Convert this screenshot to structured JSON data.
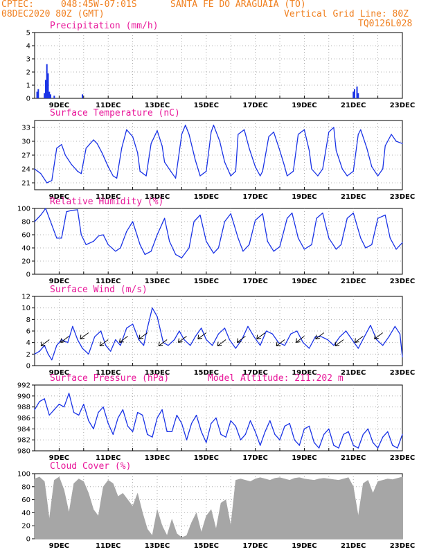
{
  "header": {
    "source": "CPTEC:",
    "coords": "048:45W-07:01S",
    "location": "SANTA FE DO ARAGUAIA (TO)",
    "run": "08DEC2020 80Z (GMT)",
    "grid_note": "Vertical Grid Line: 80Z",
    "code": "TQ0126L028"
  },
  "colors": {
    "series": "#1a33e6",
    "cloud": "#a6a6a6",
    "title": "#e8189a",
    "header": "#f08020",
    "grid": "#9a9a9a"
  },
  "chart_data": [
    {
      "type": "bar",
      "title": "Precipitation (mm/h)",
      "x_labels": [
        "9DEC",
        "11DEC",
        "13DEC",
        "15DEC",
        "17DEC",
        "19DEC",
        "21DEC",
        "23DEC"
      ],
      "xlim_days": [
        8,
        23
      ],
      "ylim": [
        0,
        5
      ],
      "yticks": [
        0,
        1,
        2,
        3,
        4,
        5
      ],
      "grid": true,
      "x": [
        8.1,
        8.15,
        8.4,
        8.45,
        8.5,
        8.55,
        8.6,
        8.65,
        8.8,
        9.95,
        21.0,
        21.05,
        21.15,
        21.2
      ],
      "values": [
        0.5,
        0.7,
        0.4,
        1.4,
        2.6,
        1.9,
        0.5,
        0.3,
        0.2,
        0.3,
        0.5,
        0.7,
        0.9,
        0.4
      ]
    },
    {
      "type": "line",
      "title": "Surface Temperature (nC)",
      "x_labels": [
        "9DEC",
        "11DEC",
        "13DEC",
        "15DEC",
        "17DEC",
        "19DEC",
        "21DEC",
        "23DEC"
      ],
      "xlim_days": [
        8,
        23
      ],
      "ylim": [
        19.5,
        34.5
      ],
      "yticks": [
        21,
        24,
        27,
        30,
        33
      ],
      "grid": true,
      "x": [
        8.0,
        8.25,
        8.5,
        8.7,
        8.9,
        9.1,
        9.25,
        9.5,
        9.75,
        9.9,
        10.1,
        10.4,
        10.55,
        10.75,
        11.0,
        11.2,
        11.35,
        11.55,
        11.75,
        12.0,
        12.2,
        12.3,
        12.55,
        12.75,
        13.0,
        13.2,
        13.3,
        13.55,
        13.75,
        14.0,
        14.15,
        14.3,
        14.55,
        14.75,
        15.0,
        15.2,
        15.3,
        15.55,
        15.75,
        16.0,
        16.2,
        16.3,
        16.55,
        16.75,
        17.0,
        17.2,
        17.3,
        17.55,
        17.75,
        18.0,
        18.2,
        18.3,
        18.55,
        18.75,
        19.0,
        19.2,
        19.3,
        19.55,
        19.75,
        20.0,
        20.2,
        20.3,
        20.55,
        20.75,
        21.0,
        21.2,
        21.3,
        21.55,
        21.75,
        22.0,
        22.2,
        22.3,
        22.55,
        22.75,
        23.0
      ],
      "values": [
        24.0,
        23.0,
        21.0,
        21.5,
        28.5,
        29.3,
        27.0,
        25.0,
        23.5,
        23.0,
        28.5,
        30.3,
        29.5,
        27.5,
        24.5,
        22.5,
        22.0,
        28.5,
        32.5,
        31.0,
        27.5,
        23.5,
        22.5,
        29.5,
        32.3,
        29.0,
        25.5,
        23.5,
        22.0,
        31.5,
        33.5,
        31.5,
        26.0,
        22.5,
        23.5,
        32.0,
        33.5,
        30.0,
        25.5,
        22.5,
        23.5,
        31.5,
        32.5,
        28.5,
        24.5,
        22.5,
        23.5,
        31.0,
        32.0,
        28.0,
        24.5,
        22.5,
        23.5,
        31.5,
        32.5,
        28.0,
        24.0,
        22.5,
        24.0,
        32.0,
        33.0,
        28.0,
        24.0,
        22.5,
        23.5,
        31.5,
        32.5,
        28.5,
        24.5,
        22.5,
        24.0,
        29.0,
        31.5,
        30.0,
        29.5
      ]
    },
    {
      "type": "line",
      "title": "Relative Humidity (%)",
      "x_labels": [
        "9DEC",
        "11DEC",
        "13DEC",
        "15DEC",
        "17DEC",
        "19DEC",
        "21DEC",
        "23DEC"
      ],
      "xlim_days": [
        8,
        23
      ],
      "ylim": [
        0,
        100
      ],
      "yticks": [
        0,
        20,
        40,
        60,
        80,
        100
      ],
      "grid": true,
      "x": [
        8.0,
        8.25,
        8.45,
        8.7,
        8.9,
        9.1,
        9.3,
        9.5,
        9.75,
        9.9,
        10.1,
        10.4,
        10.6,
        10.8,
        11.0,
        11.3,
        11.5,
        11.75,
        12.0,
        12.3,
        12.5,
        12.75,
        13.0,
        13.3,
        13.5,
        13.75,
        14.0,
        14.3,
        14.5,
        14.75,
        15.0,
        15.3,
        15.5,
        15.75,
        16.0,
        16.3,
        16.5,
        16.75,
        17.0,
        17.3,
        17.5,
        17.75,
        18.0,
        18.3,
        18.5,
        18.75,
        19.0,
        19.3,
        19.5,
        19.75,
        20.0,
        20.3,
        20.5,
        20.75,
        21.0,
        21.3,
        21.5,
        21.75,
        22.0,
        22.3,
        22.5,
        22.75,
        23.0
      ],
      "values": [
        80,
        90,
        100,
        75,
        55,
        55,
        95,
        97,
        98,
        60,
        45,
        50,
        58,
        60,
        45,
        35,
        40,
        65,
        80,
        45,
        30,
        35,
        60,
        85,
        50,
        30,
        25,
        40,
        80,
        90,
        50,
        32,
        40,
        80,
        92,
        55,
        35,
        45,
        82,
        92,
        50,
        35,
        42,
        85,
        93,
        55,
        38,
        45,
        85,
        93,
        55,
        38,
        45,
        85,
        93,
        55,
        40,
        45,
        85,
        90,
        55,
        38,
        48
      ]
    },
    {
      "type": "line",
      "title": "Surface Wind (m/s)",
      "x_labels": [
        "9DEC",
        "11DEC",
        "13DEC",
        "15DEC",
        "17DEC",
        "19DEC",
        "21DEC",
        "23DEC"
      ],
      "xlim_days": [
        8,
        23
      ],
      "ylim": [
        0,
        12
      ],
      "yticks": [
        0,
        2,
        4,
        6,
        8,
        10,
        12
      ],
      "grid": true,
      "x": [
        8.0,
        8.2,
        8.4,
        8.55,
        8.7,
        8.9,
        9.1,
        9.35,
        9.55,
        9.75,
        9.95,
        10.2,
        10.45,
        10.7,
        10.9,
        11.1,
        11.3,
        11.5,
        11.75,
        12.0,
        12.25,
        12.45,
        12.6,
        12.8,
        13.0,
        13.25,
        13.45,
        13.7,
        13.9,
        14.1,
        14.35,
        14.55,
        14.8,
        15.0,
        15.25,
        15.5,
        15.75,
        15.95,
        16.2,
        16.45,
        16.7,
        16.95,
        17.2,
        17.45,
        17.7,
        17.95,
        18.2,
        18.45,
        18.7,
        18.95,
        19.2,
        19.45,
        19.7,
        19.95,
        20.2,
        20.45,
        20.7,
        20.95,
        21.2,
        21.45,
        21.7,
        21.95,
        22.2,
        22.45,
        22.7,
        22.9,
        23.0
      ],
      "values": [
        2.0,
        2.5,
        3.5,
        2.0,
        1.0,
        3.5,
        4.5,
        4.0,
        6.8,
        4.5,
        3.0,
        2.0,
        5.0,
        6.0,
        3.5,
        2.5,
        4.5,
        3.5,
        6.5,
        7.2,
        4.5,
        3.5,
        6.5,
        10.0,
        8.5,
        4.0,
        3.5,
        4.5,
        6.0,
        4.5,
        3.5,
        5.0,
        6.5,
        4.5,
        3.5,
        5.5,
        6.5,
        4.5,
        3.0,
        4.5,
        6.8,
        5.0,
        3.5,
        6.0,
        5.5,
        4.0,
        3.5,
        5.5,
        6.0,
        4.0,
        3.0,
        5.0,
        5.0,
        4.5,
        3.5,
        5.0,
        6.0,
        4.5,
        3.0,
        5.0,
        7.0,
        4.5,
        3.5,
        5.0,
        6.8,
        5.5,
        1.5
      ]
    },
    {
      "type": "line",
      "title": "Surface Pressure (hPa)",
      "annotation": "Model Altitude: 211.202 m",
      "x_labels": [
        "9DEC",
        "11DEC",
        "13DEC",
        "15DEC",
        "17DEC",
        "19DEC",
        "21DEC",
        "23DEC"
      ],
      "xlim_days": [
        8,
        23
      ],
      "ylim": [
        980,
        992
      ],
      "yticks": [
        980,
        982,
        984,
        986,
        988,
        990,
        992
      ],
      "grid": true,
      "x": [
        8.0,
        8.2,
        8.4,
        8.6,
        8.8,
        9.0,
        9.2,
        9.4,
        9.6,
        9.8,
        10.0,
        10.2,
        10.4,
        10.6,
        10.8,
        11.0,
        11.2,
        11.4,
        11.6,
        11.8,
        12.0,
        12.2,
        12.4,
        12.6,
        12.8,
        13.0,
        13.2,
        13.4,
        13.6,
        13.8,
        14.0,
        14.2,
        14.4,
        14.6,
        14.8,
        15.0,
        15.2,
        15.4,
        15.6,
        15.8,
        16.0,
        16.2,
        16.4,
        16.6,
        16.8,
        17.0,
        17.2,
        17.4,
        17.6,
        17.8,
        18.0,
        18.2,
        18.4,
        18.6,
        18.8,
        19.0,
        19.2,
        19.4,
        19.6,
        19.8,
        20.0,
        20.2,
        20.4,
        20.6,
        20.8,
        21.0,
        21.2,
        21.4,
        21.6,
        21.8,
        22.0,
        22.2,
        22.4,
        22.6,
        22.8,
        23.0
      ],
      "values": [
        987.5,
        989.0,
        989.5,
        986.5,
        987.5,
        988.5,
        988.0,
        990.5,
        987.0,
        986.5,
        988.5,
        985.5,
        984.0,
        987.0,
        988.0,
        985.0,
        983.0,
        986.0,
        987.5,
        984.5,
        983.5,
        987.0,
        986.5,
        983.0,
        982.5,
        986.0,
        987.5,
        983.5,
        983.5,
        986.5,
        985.0,
        982.0,
        985.0,
        986.5,
        983.5,
        981.5,
        985.0,
        986.0,
        983.0,
        982.5,
        985.5,
        984.5,
        982.0,
        983.0,
        985.5,
        983.5,
        981.0,
        983.5,
        985.5,
        983.0,
        982.0,
        984.5,
        985.0,
        982.0,
        981.0,
        984.0,
        984.5,
        981.5,
        980.5,
        983.0,
        984.0,
        981.0,
        980.5,
        983.0,
        983.5,
        981.0,
        980.5,
        983.0,
        984.0,
        981.5,
        980.5,
        982.5,
        983.5,
        981.0,
        980.5,
        983.0
      ]
    },
    {
      "type": "area",
      "title": "Cloud Cover (%)",
      "x_labels": [
        "9DEC",
        "11DEC",
        "13DEC",
        "15DEC",
        "17DEC",
        "19DEC",
        "21DEC",
        "23DEC"
      ],
      "xlim_days": [
        8,
        23
      ],
      "ylim": [
        0,
        100
      ],
      "yticks": [
        0,
        20,
        40,
        60,
        80,
        100
      ],
      "grid": true,
      "x": [
        8.0,
        8.2,
        8.4,
        8.5,
        8.6,
        8.8,
        9.0,
        9.2,
        9.4,
        9.6,
        9.8,
        10.0,
        10.2,
        10.4,
        10.6,
        10.8,
        11.0,
        11.2,
        11.4,
        11.6,
        11.8,
        12.0,
        12.2,
        12.4,
        12.6,
        12.8,
        13.0,
        13.2,
        13.4,
        13.6,
        13.8,
        14.0,
        14.2,
        14.4,
        14.6,
        14.8,
        15.0,
        15.2,
        15.4,
        15.6,
        15.8,
        16.0,
        16.2,
        16.4,
        16.6,
        16.8,
        17.0,
        17.2,
        17.4,
        17.6,
        17.8,
        18.0,
        18.2,
        18.4,
        18.6,
        18.8,
        19.0,
        19.2,
        19.4,
        19.6,
        19.8,
        20.0,
        20.2,
        20.4,
        20.6,
        20.8,
        21.0,
        21.2,
        21.4,
        21.6,
        21.8,
        22.0,
        22.2,
        22.4,
        22.6,
        22.8,
        23.0
      ],
      "values": [
        92,
        95,
        88,
        60,
        30,
        90,
        95,
        75,
        40,
        85,
        92,
        88,
        70,
        45,
        35,
        80,
        90,
        85,
        65,
        70,
        60,
        50,
        70,
        40,
        15,
        5,
        45,
        20,
        5,
        30,
        8,
        2,
        5,
        25,
        40,
        10,
        35,
        45,
        15,
        55,
        60,
        20,
        90,
        92,
        90,
        88,
        92,
        94,
        92,
        90,
        93,
        94,
        92,
        90,
        93,
        94,
        92,
        91,
        90,
        92,
        93,
        92,
        91,
        90,
        92,
        94,
        80,
        35,
        85,
        90,
        70,
        88,
        90,
        92,
        91,
        93,
        95
      ]
    }
  ]
}
